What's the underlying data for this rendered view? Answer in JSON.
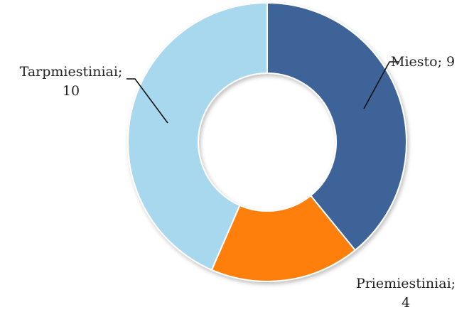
{
  "chart_data": {
    "type": "donut",
    "title": "",
    "start_angle_deg": 0,
    "direction": "clockwise",
    "legend": "none",
    "slices": [
      {
        "name": "Miesto",
        "value": 9,
        "color": "#3D6499",
        "label_lines": [
          "Miesto; 9"
        ]
      },
      {
        "name": "Priemiestiniai",
        "value": 4,
        "color": "#FF7F11",
        "label_lines": [
          "Priemiestiniai;",
          "4"
        ]
      },
      {
        "name": "Tarpmiestiniai",
        "value": 10,
        "color": "#A8D8EE",
        "label_lines": [
          "Tarpmiestiniai;",
          "10"
        ]
      }
    ]
  }
}
